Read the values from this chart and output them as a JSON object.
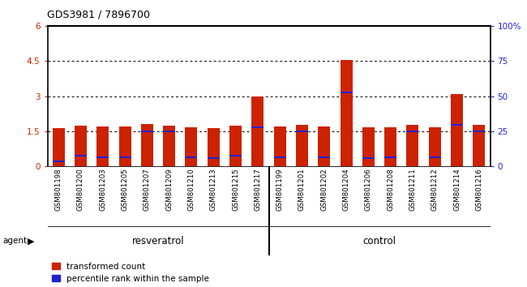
{
  "title": "GDS3981 / 7896700",
  "categories": [
    "GSM801198",
    "GSM801200",
    "GSM801203",
    "GSM801205",
    "GSM801207",
    "GSM801209",
    "GSM801210",
    "GSM801213",
    "GSM801215",
    "GSM801217",
    "GSM801199",
    "GSM801201",
    "GSM801202",
    "GSM801204",
    "GSM801206",
    "GSM801208",
    "GSM801211",
    "GSM801212",
    "GSM801214",
    "GSM801216"
  ],
  "red_values": [
    1.65,
    1.75,
    1.7,
    1.7,
    1.82,
    1.75,
    1.67,
    1.65,
    1.73,
    3.0,
    1.7,
    1.76,
    1.7,
    4.55,
    1.68,
    1.68,
    1.78,
    1.68,
    3.1,
    1.78
  ],
  "blue_values": [
    0.22,
    0.45,
    0.4,
    0.4,
    1.5,
    1.5,
    0.38,
    0.35,
    0.45,
    1.68,
    0.38,
    1.5,
    0.4,
    3.15,
    0.35,
    0.38,
    1.5,
    0.38,
    1.78,
    1.5
  ],
  "group1_count": 10,
  "group1_label": "resveratrol",
  "group2_label": "control",
  "agent_label": "agent",
  "ylim_left": [
    0,
    6
  ],
  "ylim_right": [
    0,
    100
  ],
  "yticks_left": [
    0,
    1.5,
    3.0,
    4.5,
    6.0
  ],
  "ytick_labels_left": [
    "0",
    "1.5",
    "3",
    "4.5",
    "6"
  ],
  "yticks_right": [
    0,
    25,
    50,
    75,
    100
  ],
  "ytick_labels_right": [
    "0",
    "25",
    "50",
    "75",
    "100%"
  ],
  "gridlines": [
    1.5,
    3.0,
    4.5
  ],
  "bar_color": "#cc2200",
  "blue_color": "#2222cc",
  "bg_color": "#c0c0c0",
  "group_bg": "#77ee66",
  "legend_red": "transformed count",
  "legend_blue": "percentile rank within the sample"
}
